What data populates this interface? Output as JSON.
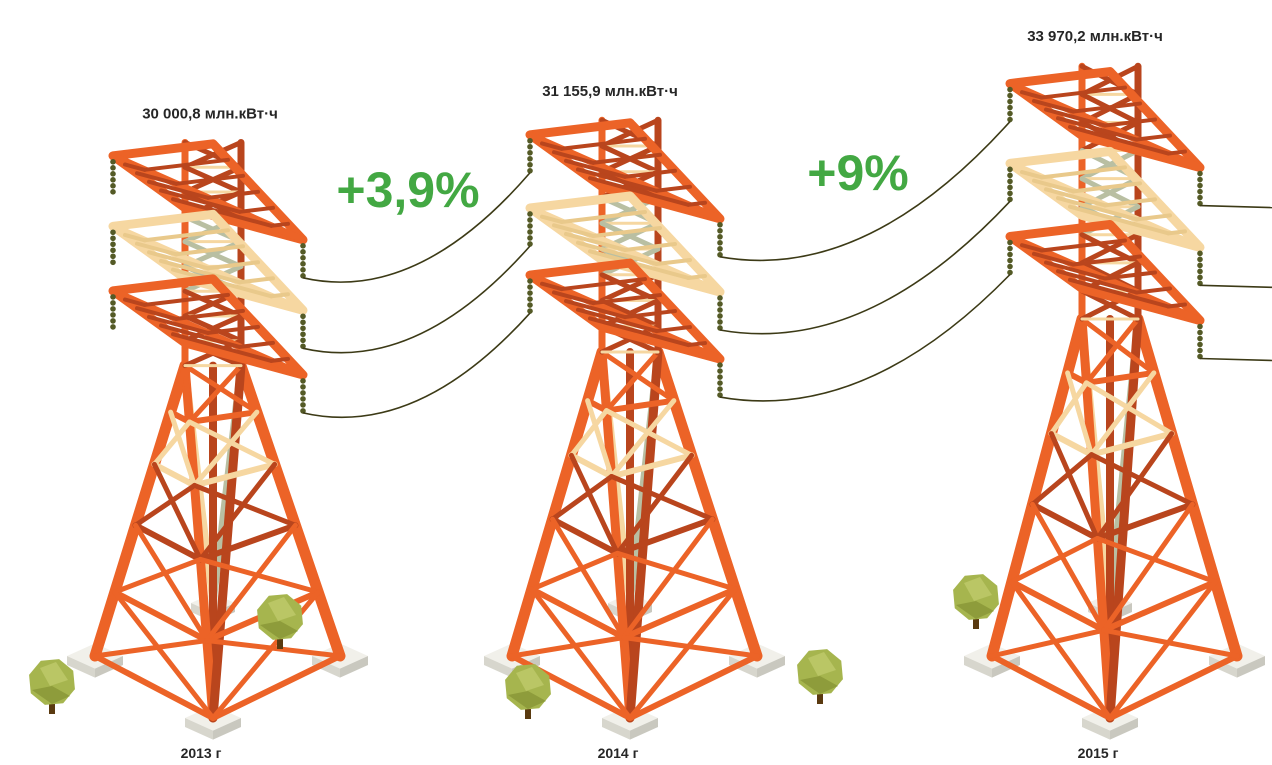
{
  "chart_data": {
    "type": "bar",
    "categories": [
      "2013 г",
      "2014 г",
      "2015 г"
    ],
    "values": [
      30000.8,
      31155.9,
      33970.2
    ],
    "value_labels": [
      "30 000,8 млн.кВт·ч",
      "31 155,9 млн.кВт·ч",
      "33 970,2 млн.кВт·ч"
    ],
    "growth_labels": [
      "+3,9%",
      "+9%"
    ],
    "unit": "млн.кВт·ч"
  },
  "colors": {
    "orange": "#ec6327",
    "dark_orange": "#b9451d",
    "cream": "#f6d7a1",
    "sage": "#b9bfa2",
    "growth_green": "#43a843",
    "wire": "#3c3a16",
    "insulator": "#545a26",
    "pad": "#e3e2da",
    "tree": "#a6b54e",
    "trunk": "#5a3a10"
  },
  "icons": [
    "transmission-tower-icon",
    "tree-icon"
  ]
}
